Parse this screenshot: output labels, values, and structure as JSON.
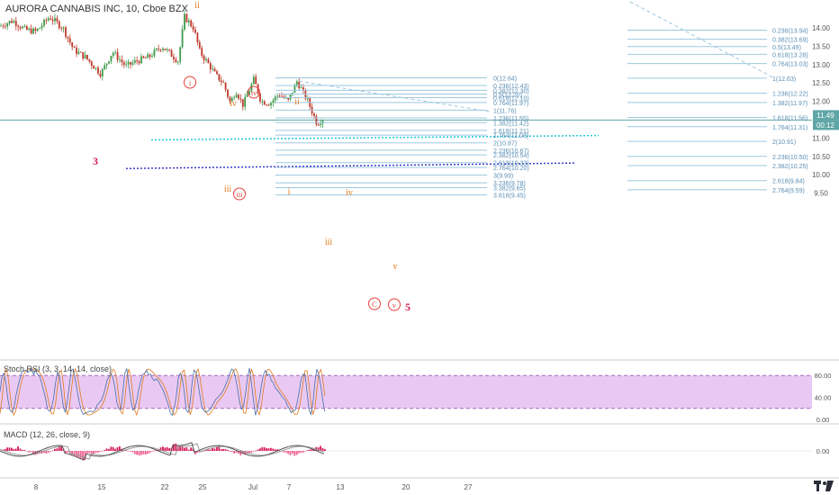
{
  "window": {
    "title": "AURORA CANNABIS INC, 10, Cboe BZX"
  },
  "colors": {
    "candle_up": "#3e9a4a",
    "candle_down": "#c0392b",
    "fib_line": "#9ec8e0",
    "fib_text": "#5b8fb5",
    "wave_red": "#e8423a",
    "wave_orange": "#e07a1c",
    "wave_dark_red": "#d21b4e",
    "cyan_trend": "#22c8d8",
    "blue_trend": "#3a3acc",
    "rsi_band": "#e9c9f3",
    "price_tag": "#5fa6a6"
  },
  "chart_data": [
    {
      "type": "candlestick",
      "title": "AURORA CANNABIS INC, 10, Cboe BZX",
      "price_scale": {
        "ticks": [
          "14.00",
          "13.50",
          "13.00",
          "12.50",
          "12.00",
          "11.50",
          "11.00",
          "10.50",
          "10.00",
          "9.50"
        ],
        "ylim": [
          9.4,
          14.35
        ]
      },
      "time_axis": {
        "tick_labels": [
          "8",
          "15",
          "22",
          "25",
          "Jul",
          "7",
          "13",
          "20",
          "27"
        ]
      },
      "last_price_tag": "11.49",
      "countdown_tag": "00:12",
      "horizontal_line": 11.49,
      "fib_levels_center": [
        {
          "label": "0(12.64)",
          "value": 12.64
        },
        {
          "label": "0.236(12.43)",
          "value": 12.43
        },
        {
          "label": "0.382(12.30)",
          "value": 12.3
        },
        {
          "label": "0.5(12.20)",
          "value": 12.2
        },
        {
          "label": "0.618(12.10)",
          "value": 12.1
        },
        {
          "label": "0.764(11.97)",
          "value": 11.97
        },
        {
          "label": "1(11.76)",
          "value": 11.76
        },
        {
          "label": "1.236(11.55)",
          "value": 11.55
        },
        {
          "label": "1.382(11.42)",
          "value": 11.42
        },
        {
          "label": "1.618(11.21)",
          "value": 11.21
        },
        {
          "label": "1.764(11.08)",
          "value": 11.08
        },
        {
          "label": "2(10.87)",
          "value": 10.87
        },
        {
          "label": "2.236(10.67)",
          "value": 10.67
        },
        {
          "label": "2.382(10.54)",
          "value": 10.54
        },
        {
          "label": "2.618(10.33)",
          "value": 10.33
        },
        {
          "label": "2.764(10.20)",
          "value": 10.2
        },
        {
          "label": "3(9.99)",
          "value": 9.99
        },
        {
          "label": "3.236(9.78)",
          "value": 9.78
        },
        {
          "label": "3.382(9.65)",
          "value": 9.65
        },
        {
          "label": "3.618(9.45)",
          "value": 9.45
        }
      ],
      "fib_levels_right": [
        {
          "label": "0.236(13.94)",
          "value": 13.94
        },
        {
          "label": "0.382(13.69)",
          "value": 13.69
        },
        {
          "label": "0.5(13.49)",
          "value": 13.49
        },
        {
          "label": "0.618(13.28)",
          "value": 13.28
        },
        {
          "label": "0.764(13.03)",
          "value": 13.03
        },
        {
          "label": "1(12.63)",
          "value": 12.63
        },
        {
          "label": "1.236(12.22)",
          "value": 12.22
        },
        {
          "label": "1.382(11.97)",
          "value": 11.97
        },
        {
          "label": "1.618(11.56)",
          "value": 11.56
        },
        {
          "label": "1.764(11.31)",
          "value": 11.31
        },
        {
          "label": "2(10.91)",
          "value": 10.91
        },
        {
          "label": "2.236(10.50)",
          "value": 10.5
        },
        {
          "label": "2.382(10.25)",
          "value": 10.25
        },
        {
          "label": "2.618(9.84)",
          "value": 9.84
        },
        {
          "label": "2.764(9.59)",
          "value": 9.59
        }
      ],
      "wave_labels": [
        {
          "text": "3",
          "style": "dark_red"
        },
        {
          "text": "ii",
          "style": "orange"
        },
        {
          "text": "i",
          "style": "red_circle"
        },
        {
          "text": "iv",
          "style": "orange"
        },
        {
          "text": "iv",
          "style": "red_circle"
        },
        {
          "text": "ii",
          "style": "orange"
        },
        {
          "text": "iii",
          "style": "orange"
        },
        {
          "text": "iii",
          "style": "red_circle"
        },
        {
          "text": "i",
          "style": "orange"
        },
        {
          "text": "iv",
          "style": "orange"
        },
        {
          "text": "iii",
          "style": "orange"
        },
        {
          "text": "v",
          "style": "orange"
        },
        {
          "text": "C",
          "style": "red_circle"
        },
        {
          "text": "v",
          "style": "red_circle"
        },
        {
          "text": "5",
          "style": "dark_red"
        }
      ]
    },
    {
      "type": "line",
      "title": "Stoch RSI (3, 3, 14, 14, close)",
      "ticks": [
        "80.00",
        "40.00",
        "0.00"
      ],
      "band": [
        20,
        80
      ],
      "ylim": [
        0,
        100
      ]
    },
    {
      "type": "line",
      "title": "MACD (12, 26, close, 9)",
      "ticks": [
        "0.00"
      ]
    }
  ]
}
